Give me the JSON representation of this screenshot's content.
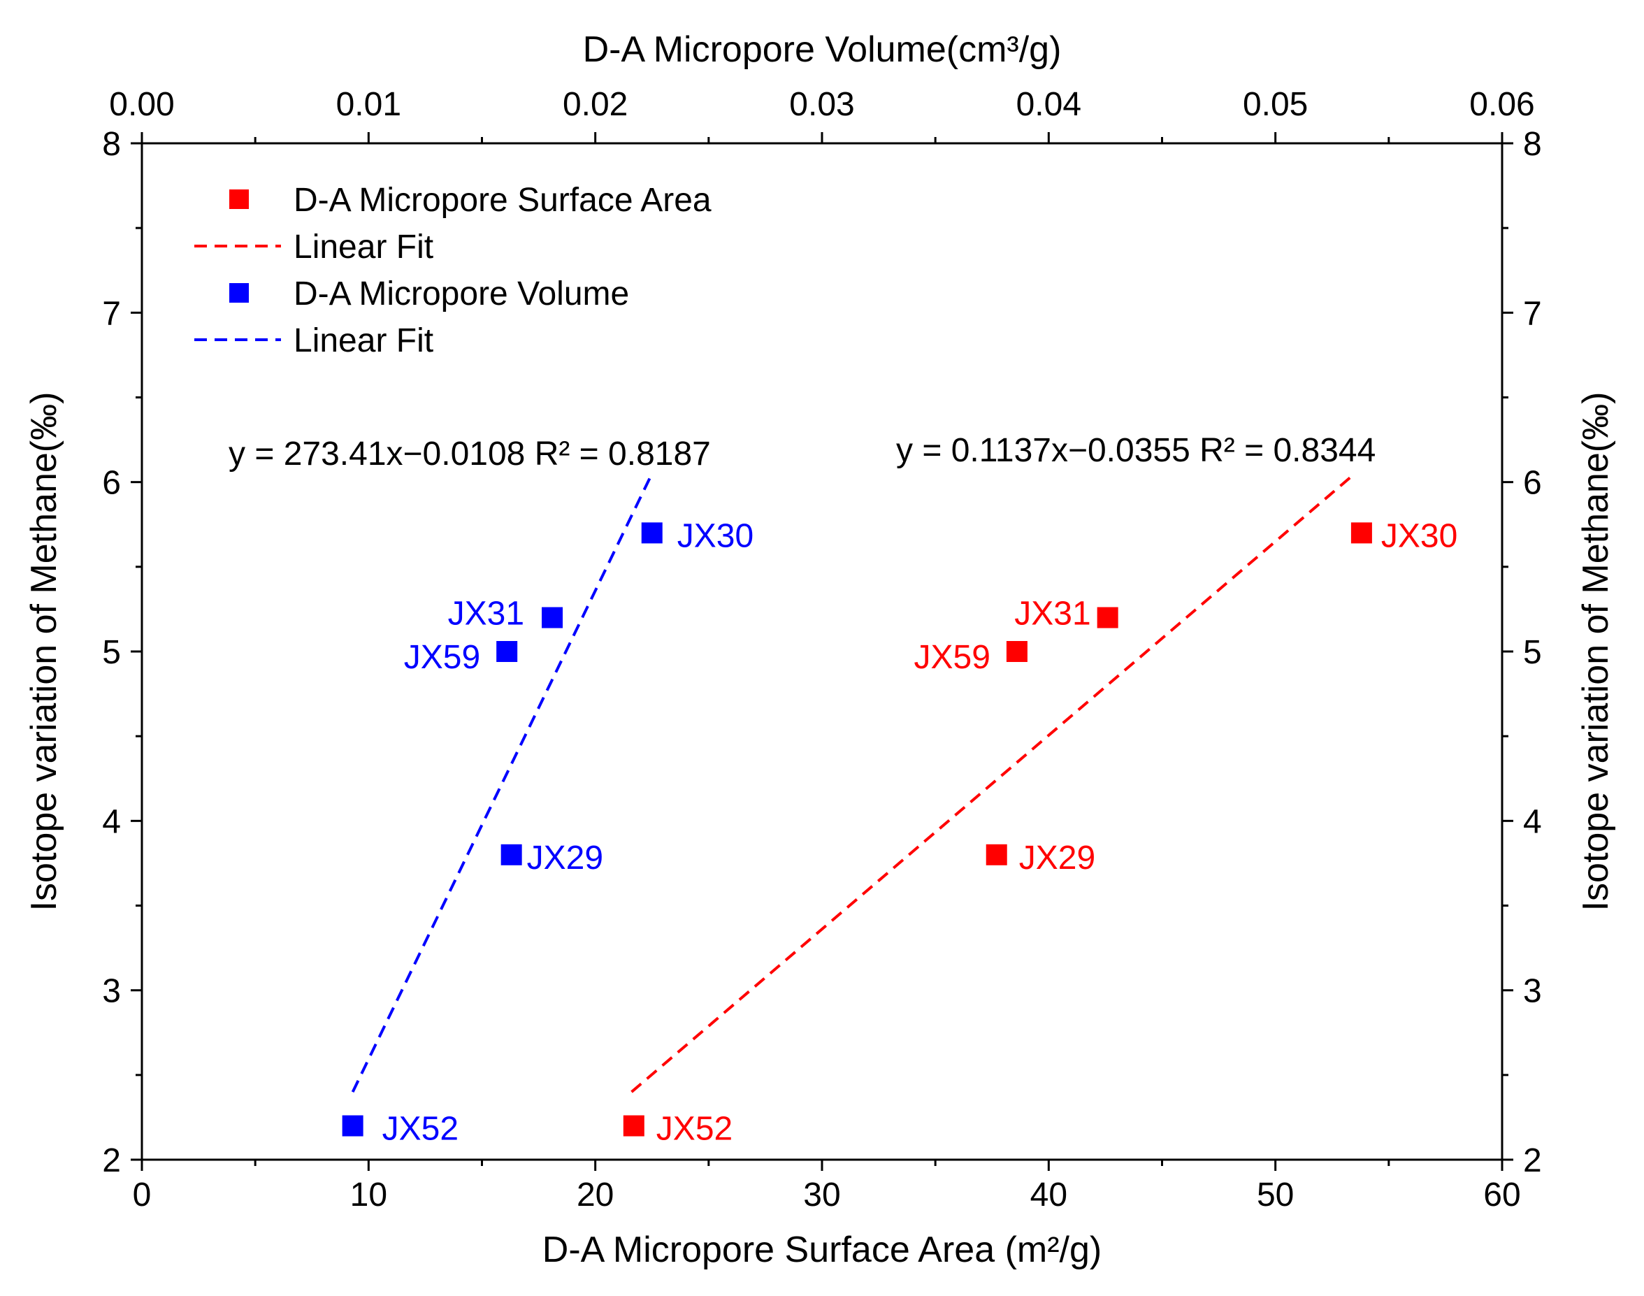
{
  "chart_data": {
    "type": "scatter",
    "title": "",
    "xlabel": "D-A Micropore Surface Area (m²/g)",
    "x2label": "D-A Micropore Volume(cm³/g)",
    "ylabel": "Isotope variation of Methane(‰)",
    "y2label": "Isotope variation of Methane(‰)",
    "xlim": [
      0,
      60
    ],
    "x2lim": [
      0.0,
      0.06
    ],
    "ylim": [
      2,
      8
    ],
    "x_ticks": [
      "0",
      "10",
      "20",
      "30",
      "40",
      "50",
      "60"
    ],
    "x2_ticks": [
      "0.00",
      "0.01",
      "0.02",
      "0.03",
      "0.04",
      "0.05",
      "0.06"
    ],
    "y_ticks": [
      "2",
      "3",
      "4",
      "5",
      "6",
      "7",
      "8"
    ],
    "legend": {
      "placement": "top-left",
      "entries": [
        {
          "label": "D-A Micropore Surface Area",
          "kind": "square",
          "color": "#ff0000"
        },
        {
          "label": "Linear Fit",
          "kind": "dash",
          "color": "#ff0000"
        },
        {
          "label": "D-A Micropore Volume",
          "kind": "square",
          "color": "#0000ff"
        },
        {
          "label": "Linear Fit",
          "kind": "dash",
          "color": "#0000ff"
        }
      ]
    },
    "series": [
      {
        "name": "D-A Micropore Surface Area",
        "axis": "bottom",
        "color": "#ff0000",
        "points": [
          {
            "label": "JX30",
            "x": 53.8,
            "y": 5.7
          },
          {
            "label": "JX31",
            "x": 42.6,
            "y": 5.2
          },
          {
            "label": "JX59",
            "x": 38.6,
            "y": 5.0
          },
          {
            "label": "JX29",
            "x": 37.7,
            "y": 3.8
          },
          {
            "label": "JX52",
            "x": 21.7,
            "y": 2.2
          }
        ],
        "fit": {
          "equation": "y = 0.1137x−0.0355  R² = 0.8344",
          "x_range": [
            21.6,
            53.5
          ],
          "y_range": [
            2.4,
            6.05
          ]
        }
      },
      {
        "name": "D-A Micropore Volume",
        "axis": "top",
        "color": "#0000ff",
        "points": [
          {
            "label": "JX30",
            "x": 0.0225,
            "y": 5.7
          },
          {
            "label": "JX31",
            "x": 0.0181,
            "y": 5.2
          },
          {
            "label": "JX59",
            "x": 0.0161,
            "y": 5.0
          },
          {
            "label": "JX29",
            "x": 0.0163,
            "y": 3.8
          },
          {
            "label": "JX52",
            "x": 0.0093,
            "y": 2.2
          }
        ],
        "fit": {
          "equation": "y = 273.41x−0.0108  R² = 0.8187",
          "x_range": [
            0.0093,
            0.0225
          ],
          "y_range": [
            2.4,
            6.05
          ]
        }
      }
    ]
  }
}
